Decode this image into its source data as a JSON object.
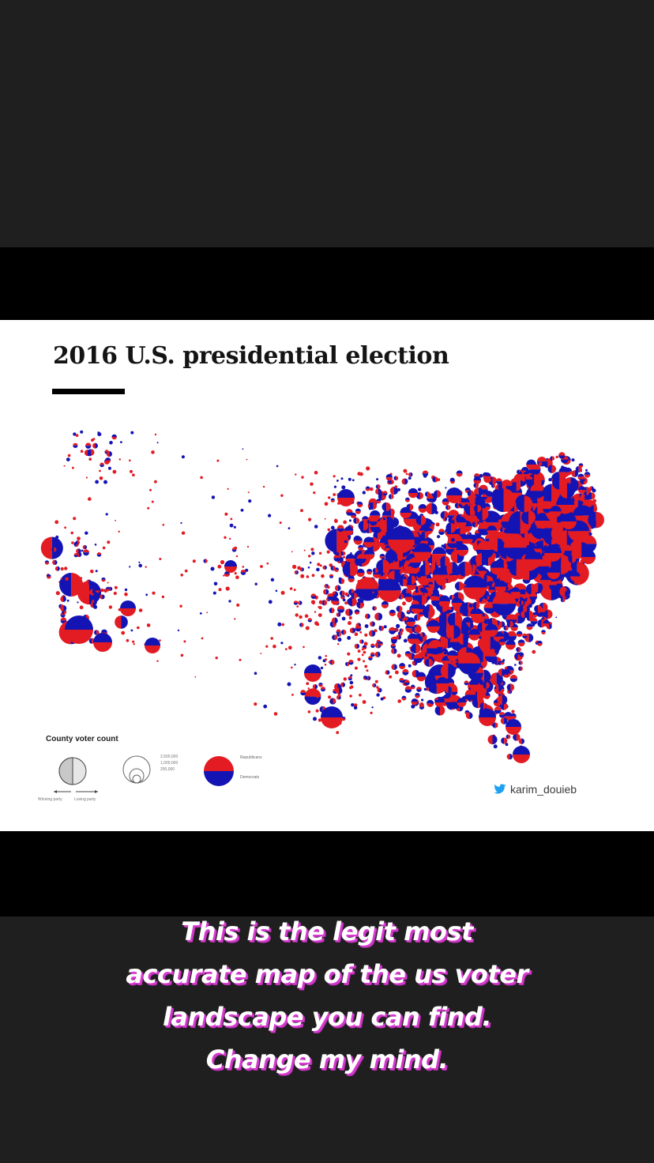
{
  "map": {
    "title": "2016 U.S. presidential election",
    "colors": {
      "republicans": "#e31b23",
      "democrats": "#1414b4"
    },
    "legend": {
      "title": "County voter count",
      "sizes": [
        "2,500,000",
        "1,000,000",
        "250,000"
      ],
      "parties": {
        "republicans": "Republicans",
        "democrats": "Democrats"
      },
      "winning": "Winning party",
      "losing": "Losing party"
    },
    "credit": {
      "icon": "twitter-bird-icon",
      "handle": "karim_douieb"
    }
  },
  "caption": "This is the legit most accurate map of the us voter landscape you can find. Change my mind."
}
